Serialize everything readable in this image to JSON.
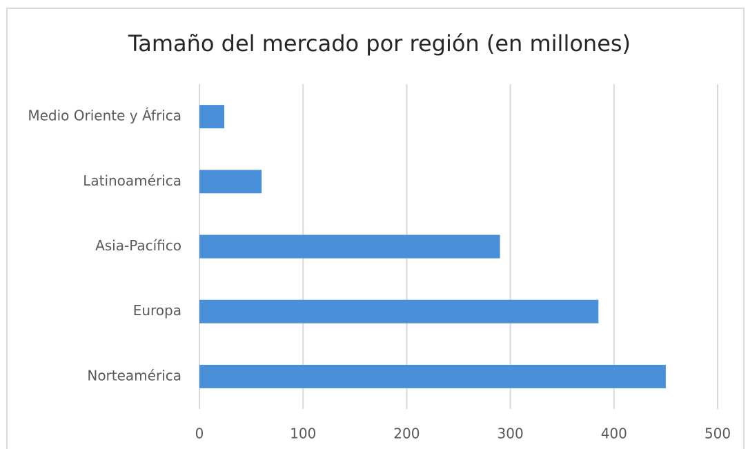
{
  "chart_data": {
    "type": "bar",
    "orientation": "horizontal",
    "title": "Tamaño del mercado por región (en millones)",
    "categories": [
      "Norteamérica",
      "Europa",
      "Asia-Pacífico",
      "Latinoamérica",
      "Medio Oriente y África"
    ],
    "values": [
      450,
      385,
      290,
      60,
      24
    ],
    "color": "#4a90d9",
    "xlim": [
      0,
      500
    ],
    "xticks": [
      0,
      100,
      200,
      300,
      400,
      500
    ],
    "grid": true
  }
}
